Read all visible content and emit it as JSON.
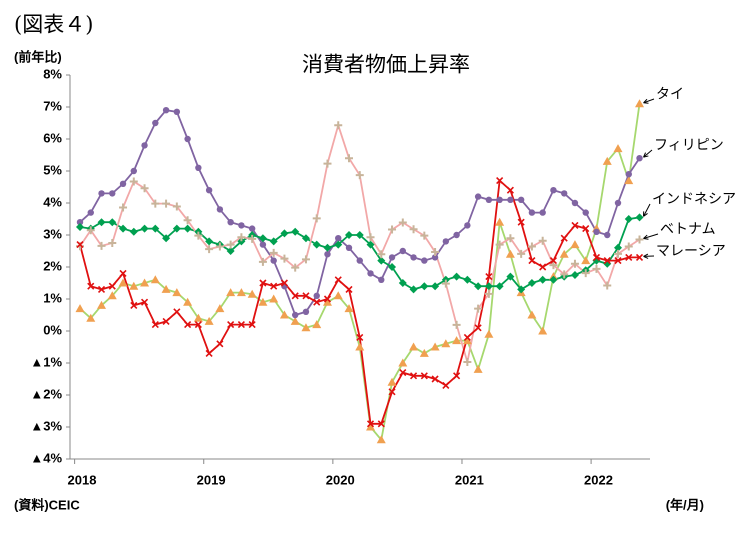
{
  "chart_data": {
    "type": "line",
    "figure_label": "(図表４)",
    "title": "消費者物価上昇率",
    "y_label": "(前年比)",
    "x_label": "(年/月)",
    "source": "(資料)CEIC",
    "grid": false,
    "categories": [
      "2018",
      null,
      null,
      null,
      null,
      null,
      null,
      null,
      null,
      null,
      null,
      null,
      "2019",
      null,
      null,
      null,
      null,
      null,
      null,
      null,
      null,
      null,
      null,
      null,
      "2020",
      null,
      null,
      null,
      null,
      null,
      null,
      null,
      null,
      null,
      null,
      null,
      "2021",
      null,
      null,
      null,
      null,
      null,
      null,
      null,
      null,
      null,
      null,
      null,
      "2022",
      null,
      null,
      null,
      null
    ],
    "ylim": [
      -4,
      8
    ],
    "yticks": [
      {
        "value": 8,
        "label": "8%"
      },
      {
        "value": 7,
        "label": "7%"
      },
      {
        "value": 6,
        "label": "6%"
      },
      {
        "value": 5,
        "label": "5%"
      },
      {
        "value": 4,
        "label": "4%"
      },
      {
        "value": 3,
        "label": "3%"
      },
      {
        "value": 2,
        "label": "2%"
      },
      {
        "value": 1,
        "label": "1%"
      },
      {
        "value": 0,
        "label": "0%"
      },
      {
        "value": -1,
        "label": "▲1%"
      },
      {
        "value": -2,
        "label": "▲2%"
      },
      {
        "value": -3,
        "label": "▲3%"
      },
      {
        "value": -4,
        "label": "▲4%"
      }
    ],
    "series": [
      {
        "name": "タイ",
        "color": "#a6d86e",
        "marker_color": "#f0a050",
        "marker": "triangle",
        "values": [
          0.7,
          0.4,
          0.8,
          1.1,
          1.5,
          1.4,
          1.5,
          1.6,
          1.3,
          1.2,
          0.9,
          0.4,
          0.3,
          0.7,
          1.2,
          1.2,
          1.15,
          0.9,
          1.0,
          0.5,
          0.3,
          0.1,
          0.2,
          0.9,
          1.1,
          0.7,
          -0.5,
          -3.0,
          -3.4,
          -1.6,
          -1.0,
          -0.5,
          -0.7,
          -0.5,
          -0.4,
          -0.3,
          -0.3,
          -1.2,
          -0.1,
          3.4,
          2.4,
          1.2,
          0.5,
          0.0,
          1.7,
          2.4,
          2.7,
          2.2,
          3.2,
          5.3,
          5.7,
          4.7,
          7.1
        ]
      },
      {
        "name": "フィリピン",
        "color": "#8064a2",
        "marker_color": "#8064a2",
        "marker": "circle",
        "values": [
          3.4,
          3.7,
          4.3,
          4.3,
          4.6,
          5.0,
          5.8,
          6.5,
          6.9,
          6.85,
          6.0,
          5.1,
          4.4,
          3.8,
          3.4,
          3.3,
          3.2,
          2.7,
          2.2,
          1.4,
          0.5,
          0.6,
          1.1,
          2.4,
          2.9,
          2.6,
          2.2,
          1.8,
          1.6,
          2.3,
          2.5,
          2.3,
          2.2,
          2.3,
          2.8,
          3.0,
          3.3,
          4.2,
          4.1,
          4.1,
          4.1,
          4.1,
          3.7,
          3.7,
          4.4,
          4.3,
          4.0,
          3.7,
          3.1,
          3.0,
          4.0,
          4.9,
          5.4
        ]
      },
      {
        "name": "インドネシア",
        "color": "#00a050",
        "marker_color": "#00a050",
        "marker": "diamond",
        "values": [
          3.25,
          3.2,
          3.4,
          3.4,
          3.2,
          3.1,
          3.2,
          3.2,
          2.9,
          3.2,
          3.2,
          3.1,
          2.8,
          2.7,
          2.5,
          2.8,
          3.0,
          2.9,
          2.8,
          3.05,
          3.1,
          2.9,
          2.7,
          2.6,
          2.7,
          3.0,
          3.0,
          2.7,
          2.2,
          2.0,
          1.5,
          1.3,
          1.4,
          1.4,
          1.6,
          1.7,
          1.6,
          1.4,
          1.4,
          1.4,
          1.7,
          1.3,
          1.5,
          1.6,
          1.6,
          1.7,
          1.75,
          1.9,
          2.2,
          2.1,
          2.6,
          3.5,
          3.55
        ]
      },
      {
        "name": "ベトナム",
        "color": "#f2a8a8",
        "marker_color": "#c8b49a",
        "marker": "plus",
        "values": [
          2.65,
          3.15,
          2.66,
          2.75,
          3.86,
          4.67,
          4.46,
          3.98,
          3.98,
          3.89,
          3.46,
          2.98,
          2.56,
          2.64,
          2.7,
          2.93,
          2.88,
          2.16,
          2.44,
          2.26,
          1.98,
          2.24,
          3.52,
          5.23,
          6.43,
          5.4,
          4.87,
          2.93,
          2.4,
          3.17,
          3.39,
          3.18,
          2.98,
          2.47,
          1.48,
          0.19,
          -0.97,
          0.7,
          1.16,
          2.7,
          2.9,
          2.41,
          2.64,
          2.82,
          2.06,
          1.77,
          2.1,
          1.81,
          1.94,
          1.42,
          2.41,
          2.64,
          2.86
        ]
      },
      {
        "name": "マレーシア",
        "color": "#e01010",
        "marker_color": "#e01010",
        "marker": "cross",
        "values": [
          2.7,
          1.4,
          1.3,
          1.4,
          1.8,
          0.8,
          0.9,
          0.2,
          0.3,
          0.6,
          0.2,
          0.2,
          -0.7,
          -0.4,
          0.2,
          0.2,
          0.2,
          1.5,
          1.4,
          1.5,
          1.1,
          1.1,
          0.9,
          1.0,
          1.6,
          1.3,
          -0.2,
          -2.9,
          -2.9,
          -1.9,
          -1.3,
          -1.4,
          -1.4,
          -1.5,
          -1.7,
          -1.4,
          -0.2,
          0.1,
          1.7,
          4.7,
          4.4,
          3.4,
          2.2,
          2.0,
          2.2,
          2.9,
          3.3,
          3.2,
          2.3,
          2.2,
          2.2,
          2.3,
          2.3
        ]
      }
    ]
  }
}
